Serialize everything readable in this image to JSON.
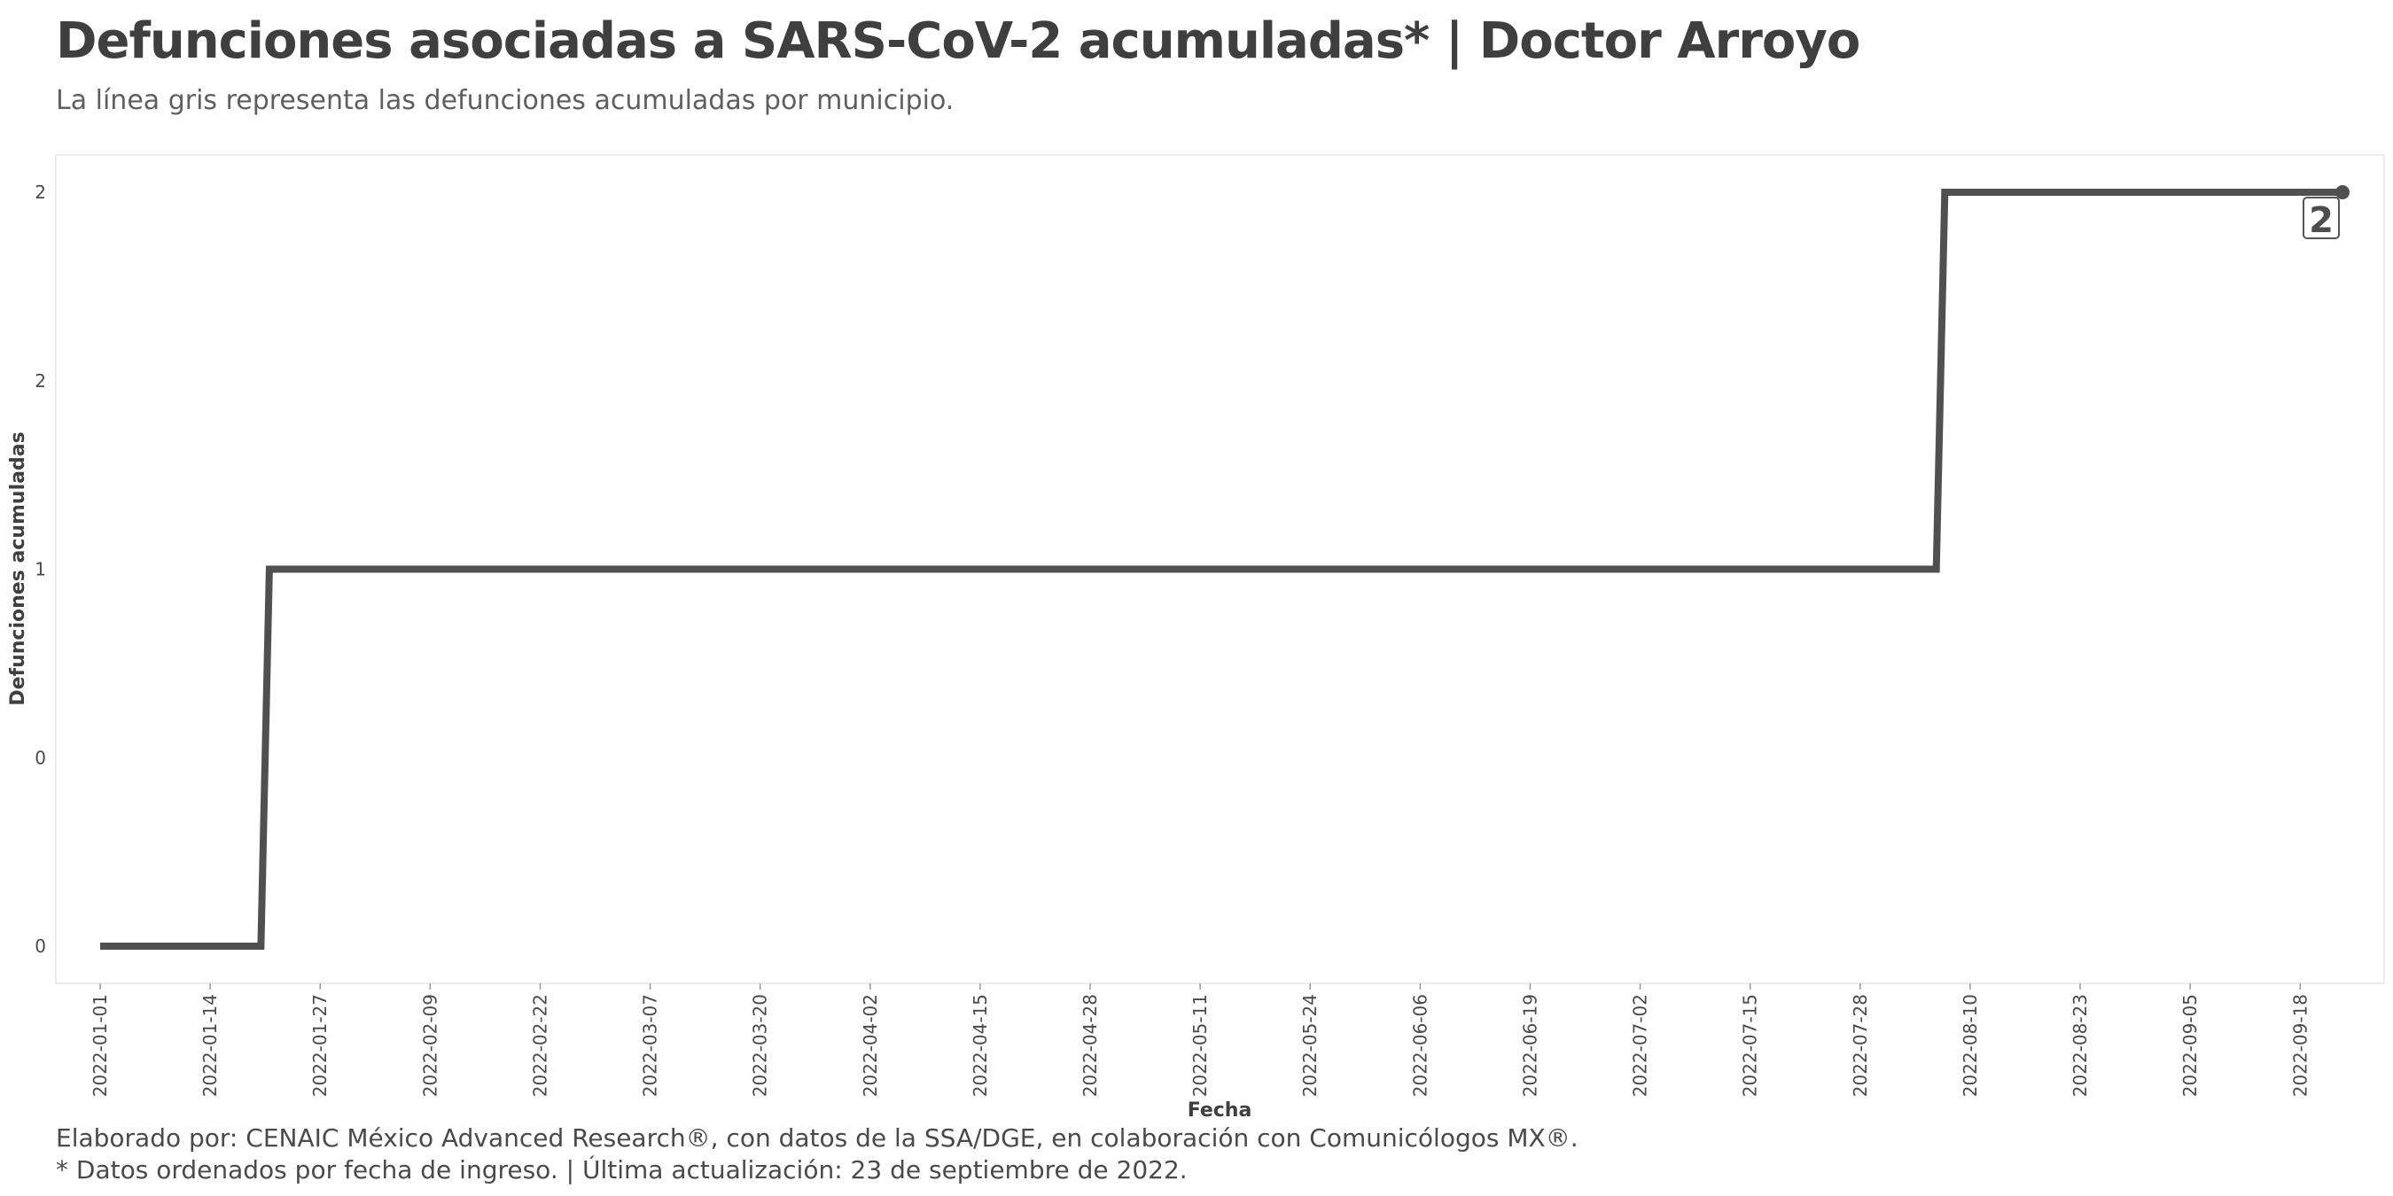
{
  "header": {
    "title": "Defunciones asociadas a SARS-CoV-2 acumuladas* | Doctor Arroyo",
    "subtitle": "La línea gris representa las defunciones acumuladas por municipio."
  },
  "footer": {
    "caption_line1": "Elaborado por: CENAIC México Advanced Research®, con datos de la SSA/DGE, en colaboración con Comunicólogos MX®.",
    "caption_line2": "* Datos ordenados por fecha de ingreso. | Última actualización: 23 de septiembre de 2022."
  },
  "chart_data": {
    "type": "line",
    "xlabel": "Fecha",
    "ylabel": "Defunciones acumuladas",
    "xlim": [
      "2022-01-01",
      "2022-09-23"
    ],
    "ylim": [
      0,
      2
    ],
    "x_ticks": [
      "2022-01-01",
      "2022-01-14",
      "2022-01-27",
      "2022-02-09",
      "2022-02-22",
      "2022-03-07",
      "2022-03-20",
      "2022-04-02",
      "2022-04-15",
      "2022-04-28",
      "2022-05-11",
      "2022-05-24",
      "2022-06-06",
      "2022-06-19",
      "2022-07-02",
      "2022-07-15",
      "2022-07-28",
      "2022-08-10",
      "2022-08-23",
      "2022-09-05",
      "2022-09-18"
    ],
    "y_ticks": [
      {
        "value": 0,
        "label": "0"
      },
      {
        "value": 0.5,
        "label": "0"
      },
      {
        "value": 1,
        "label": "1"
      },
      {
        "value": 1.5,
        "label": "2"
      },
      {
        "value": 2,
        "label": "2"
      }
    ],
    "grid": false,
    "line_color": "#505050",
    "series": [
      {
        "x": [
          "2022-01-01",
          "2022-01-20",
          "2022-01-21",
          "2022-08-06",
          "2022-08-07",
          "2022-09-23"
        ],
        "values": [
          0,
          0,
          1,
          1,
          2,
          2
        ]
      }
    ],
    "end_label": "2"
  }
}
